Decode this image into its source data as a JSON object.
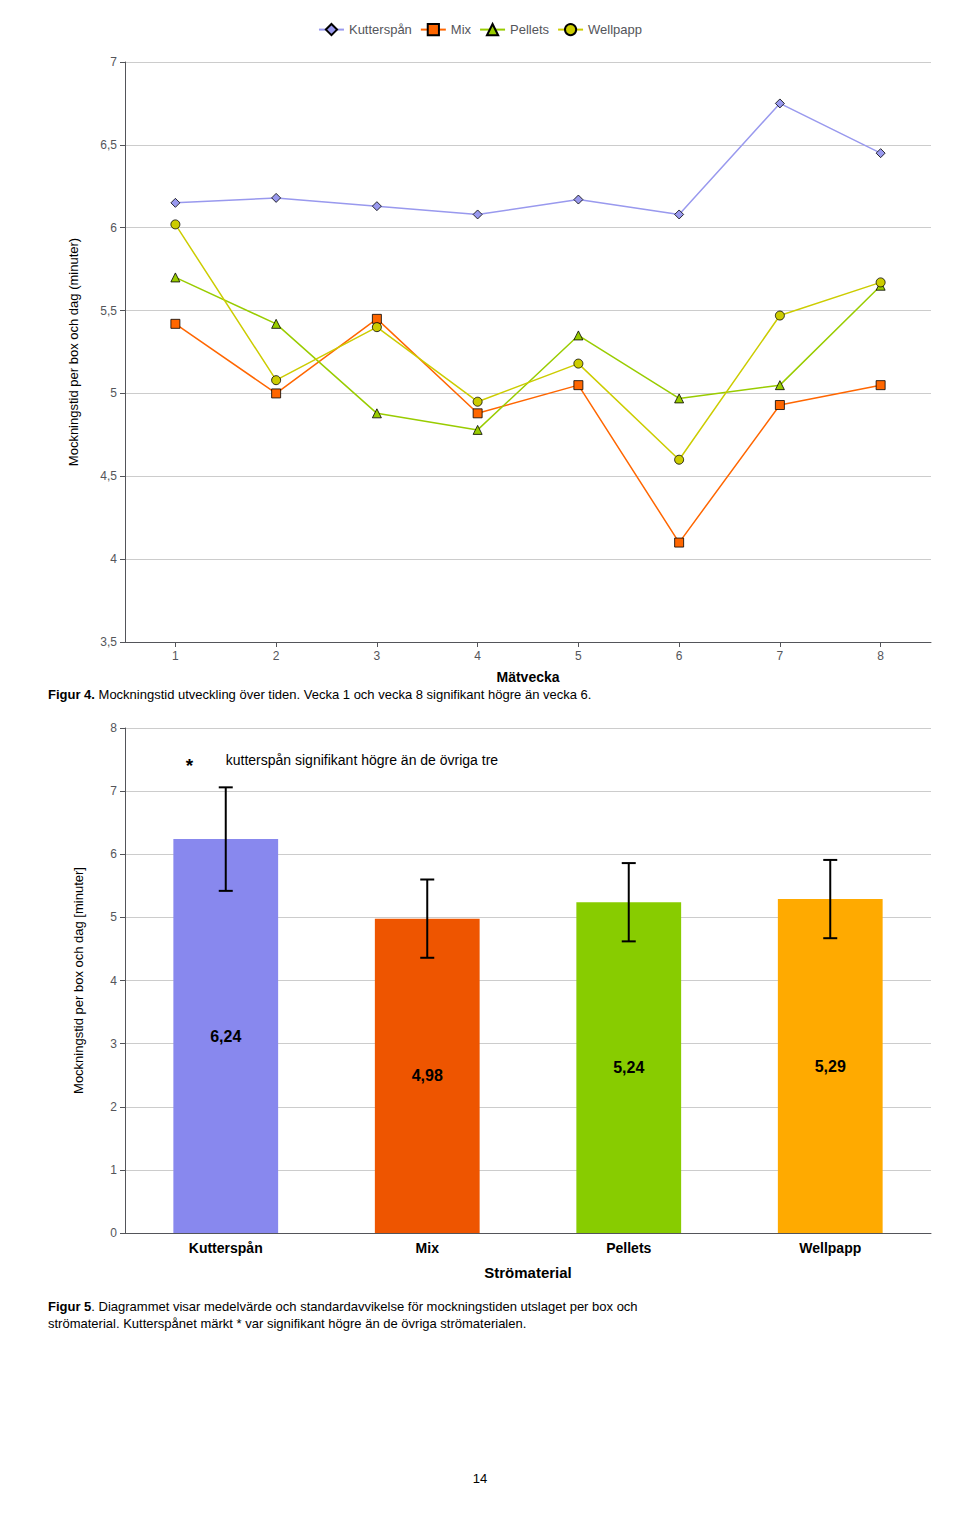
{
  "chart_data": [
    {
      "type": "line",
      "xlabel": "Mätvecka",
      "ylabel": "Mockningstid per box och dag (minuter)",
      "x": [
        1,
        2,
        3,
        4,
        5,
        6,
        7,
        8
      ],
      "xlim": [
        0.5,
        8.5
      ],
      "xticks": [
        1,
        2,
        3,
        4,
        5,
        6,
        7,
        8
      ],
      "ylim": [
        3.5,
        7.0
      ],
      "yticks": [
        {
          "value": 3.5,
          "label": "3,5"
        },
        4,
        {
          "value": 4.5,
          "label": "4,5"
        },
        5,
        {
          "value": 5.5,
          "label": "5,5"
        },
        6,
        {
          "value": 6.5,
          "label": "6,5"
        },
        7
      ],
      "grid": true,
      "legend": "top",
      "series": [
        {
          "name": "Kutterspån",
          "color": "#9999EE",
          "marker": "diamond",
          "line_style": "solid",
          "values": [
            6.15,
            6.18,
            6.13,
            6.08,
            6.17,
            6.08,
            6.75,
            6.45
          ]
        },
        {
          "name": "Mix",
          "color": "#FF6600",
          "marker": "square",
          "line_style": "solid",
          "values": [
            5.42,
            5.0,
            5.45,
            4.88,
            5.05,
            4.1,
            4.93,
            5.05
          ]
        },
        {
          "name": "Pellets",
          "color": "#99CC00",
          "marker": "triangle",
          "line_style": "solid",
          "values": [
            5.7,
            5.42,
            4.88,
            4.78,
            5.35,
            4.97,
            5.05,
            5.65
          ]
        },
        {
          "name": "Wellpapp",
          "color": "#CCCC00",
          "marker": "circle",
          "line_style": "solid",
          "values": [
            6.02,
            5.08,
            5.4,
            4.95,
            5.18,
            4.6,
            5.47,
            5.67
          ]
        }
      ],
      "caption": {
        "bold": "Figur 4.",
        "text": " Mockningstid utveckling över tiden. Vecka 1 och vecka 8 signifikant högre än vecka 6."
      }
    },
    {
      "type": "bar",
      "xlabel": "Strömaterial",
      "ylabel": "Mockningstid per box och dag [minuter]",
      "categories": [
        "Kutterspån",
        "Mix",
        "Pellets",
        "Wellpapp"
      ],
      "values": [
        6.24,
        4.98,
        5.24,
        5.29
      ],
      "value_labels": [
        "6,24",
        "4,98",
        "5,24",
        "5,29"
      ],
      "errors": [
        0.82,
        0.62,
        0.62,
        0.62
      ],
      "colors": [
        "#8888EE",
        "#EE5500",
        "#88CC00",
        "#FFAA00"
      ],
      "ylim": [
        0,
        8
      ],
      "yticks": [
        0,
        1,
        2,
        3,
        4,
        5,
        6,
        7,
        8
      ],
      "grid": true,
      "data_labels": true,
      "annotations": [
        "*",
        "kutterspån signifikant högre än de övriga tre"
      ],
      "caption": {
        "bold": "Figur 5",
        "text": ". Diagrammet visar medelvärde och standardavvikelse för mockningstiden utslaget per box och\nströmaterial. Kutterspånet märkt * var signifikant högre än de övriga strömaterialen."
      }
    }
  ],
  "page_number": "14"
}
